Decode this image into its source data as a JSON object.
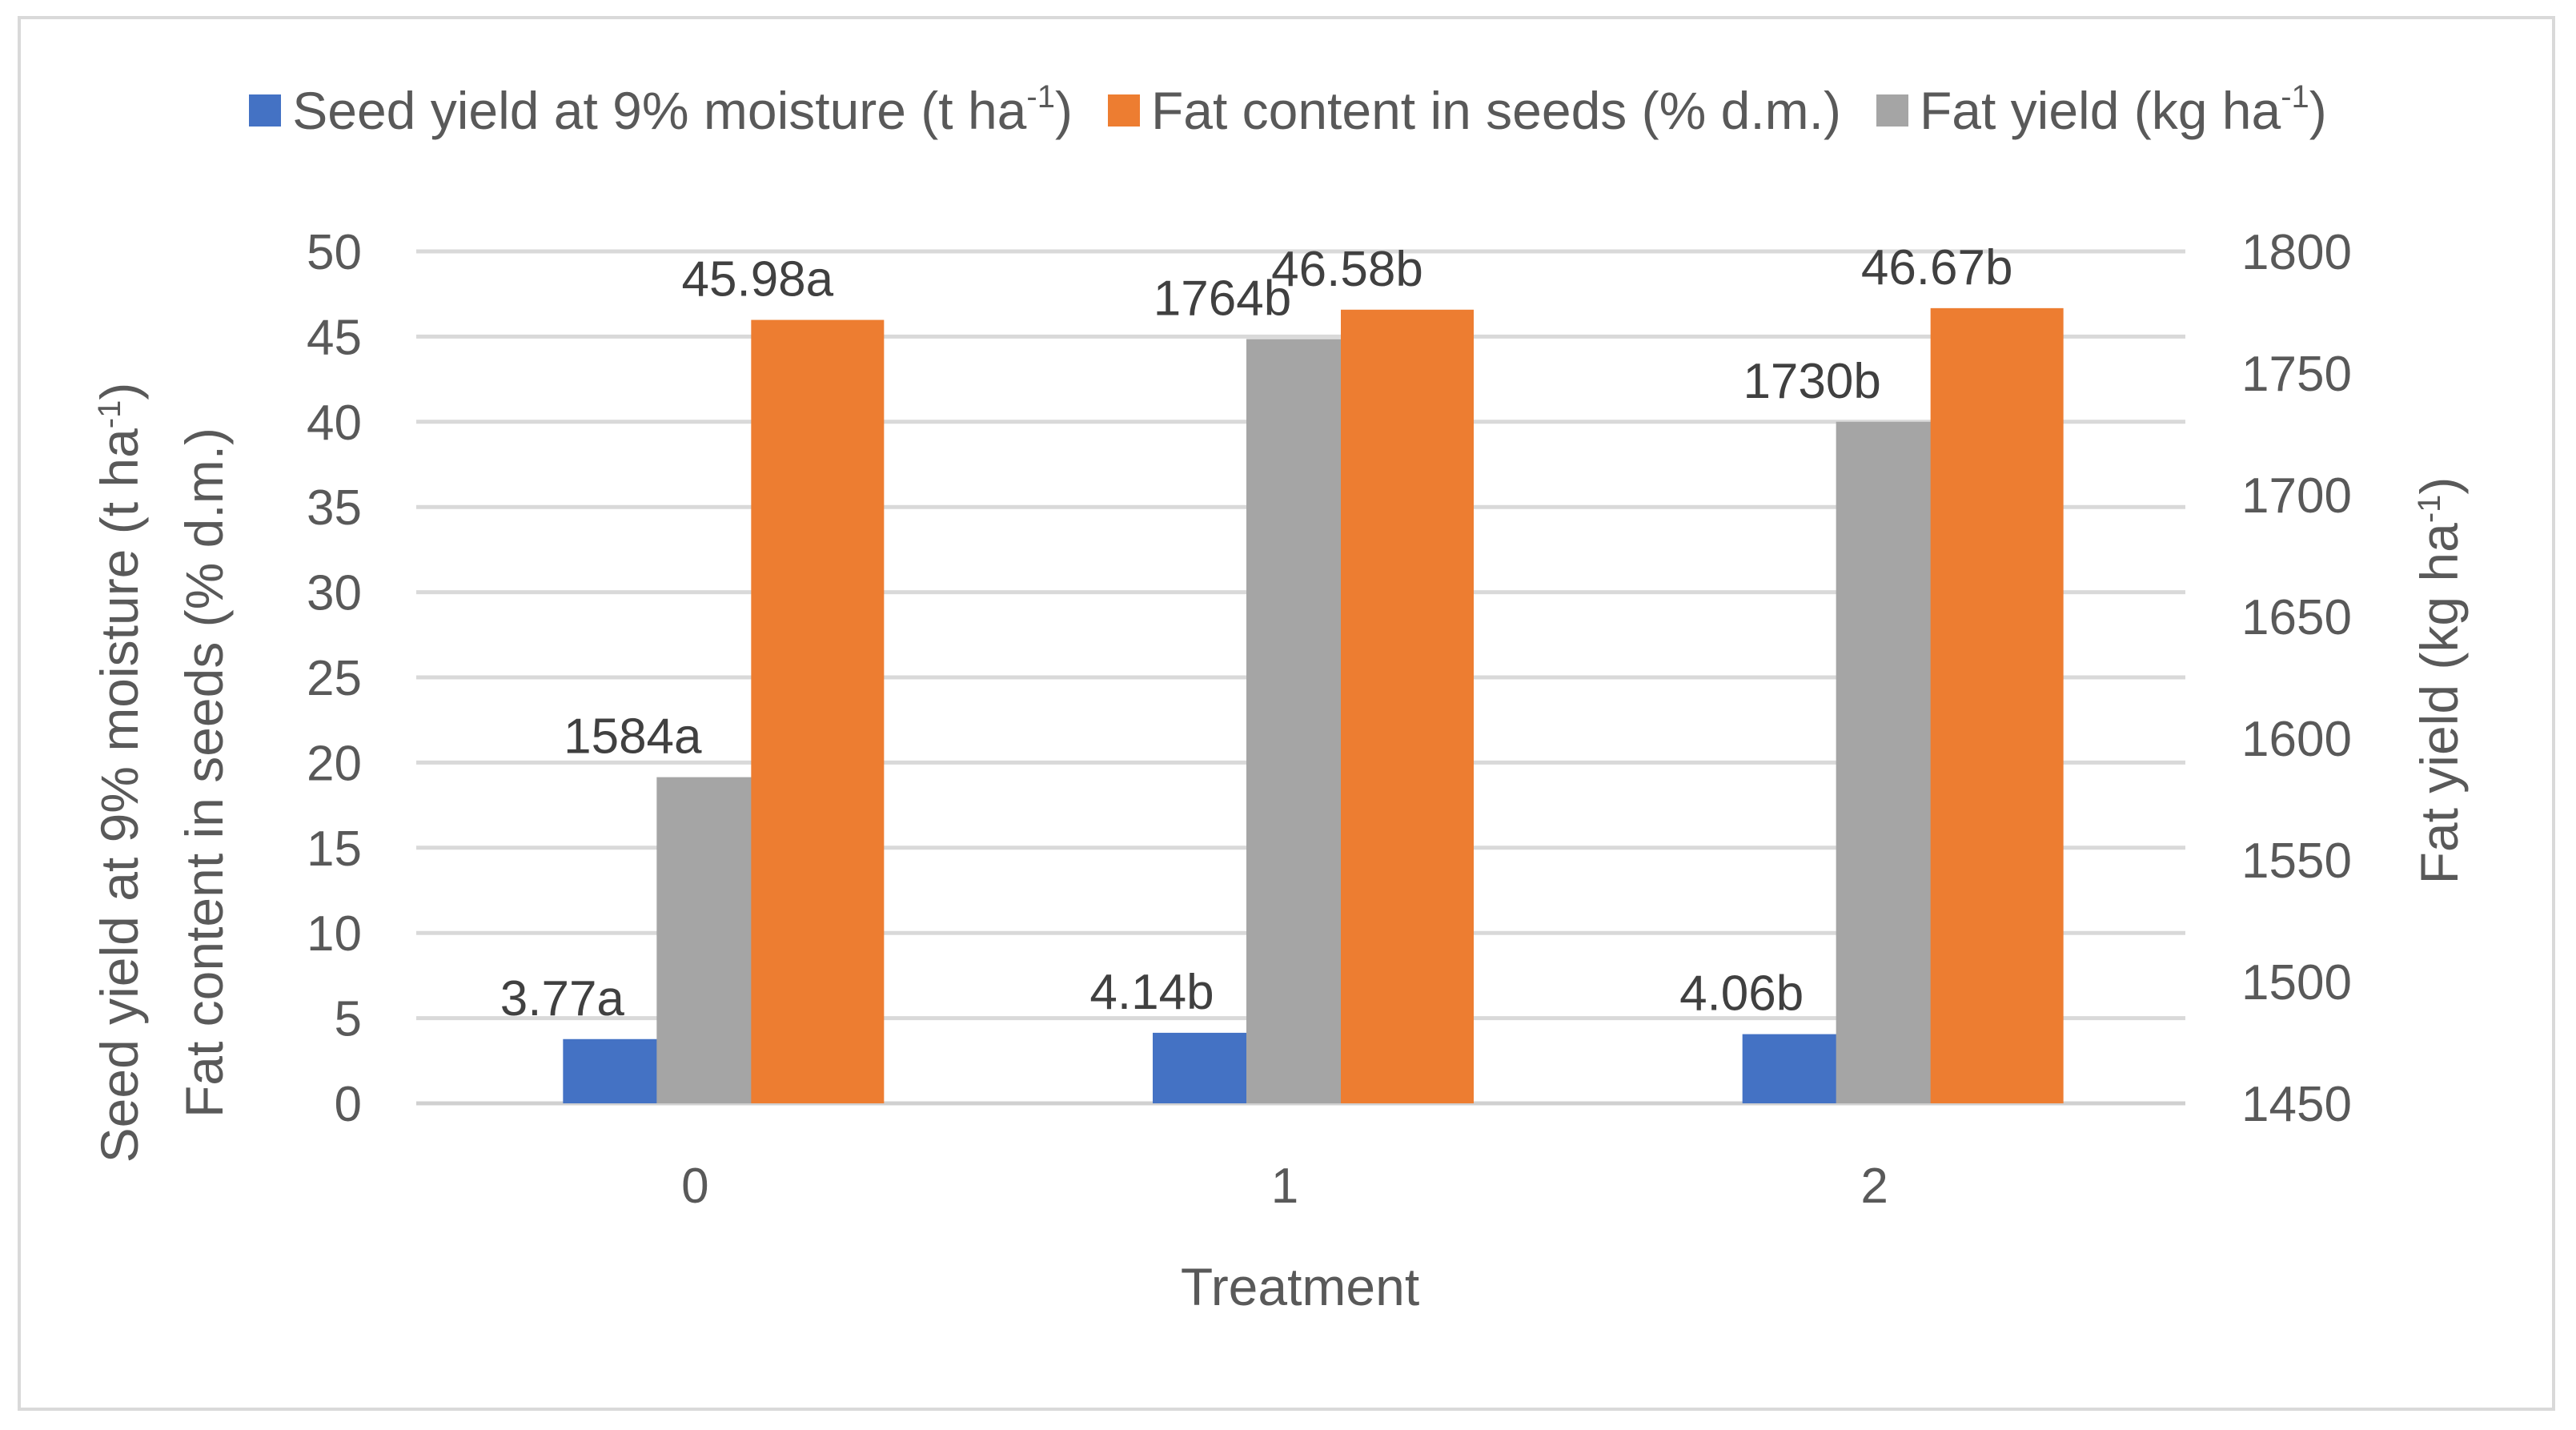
{
  "chart_data": {
    "type": "bar",
    "xlabel": "Treatment",
    "categories": [
      "0",
      "1",
      "2"
    ],
    "left_axis": {
      "label_line1": "Seed yield at 9% moisture (t ha",
      "label_line1_sup": "-1",
      "label_line1_end": ")",
      "label_line2": "Fat content in seeds (% d.m.)",
      "ylim": [
        0,
        50
      ],
      "ticks": [
        0,
        5,
        10,
        15,
        20,
        25,
        30,
        35,
        40,
        45,
        50
      ]
    },
    "right_axis": {
      "label": "Fat yield (kg ha",
      "label_sup": "-1",
      "label_end": ")",
      "ylim": [
        1450,
        1800
      ],
      "ticks": [
        1450,
        1500,
        1550,
        1600,
        1650,
        1700,
        1750,
        1800
      ]
    },
    "series": [
      {
        "name": "Seed yield at 9% moisture (t ha",
        "name_sup": "-1",
        "name_end": ")",
        "axis": "left",
        "color": "#4472c4",
        "values": [
          3.77,
          4.14,
          4.06
        ],
        "labels": [
          "3.77a",
          "4.14b",
          "4.06b"
        ]
      },
      {
        "name": "Fat yield (kg ha",
        "name_sup": "-1",
        "name_end": ")",
        "axis": "right",
        "color": "#a5a5a5",
        "values": [
          1584,
          1764,
          1730
        ],
        "labels": [
          "1584a",
          "1764b",
          "1730b"
        ]
      },
      {
        "name": "Fat content in seeds (% d.m.)",
        "name_sup": "",
        "name_end": "",
        "axis": "left",
        "color": "#ed7d31",
        "values": [
          45.98,
          46.58,
          46.67
        ],
        "labels": [
          "45.98a",
          "46.58b",
          "46.67b"
        ]
      }
    ],
    "legend_order": [
      0,
      2,
      1
    ],
    "grid": true,
    "legend_position": "top"
  }
}
